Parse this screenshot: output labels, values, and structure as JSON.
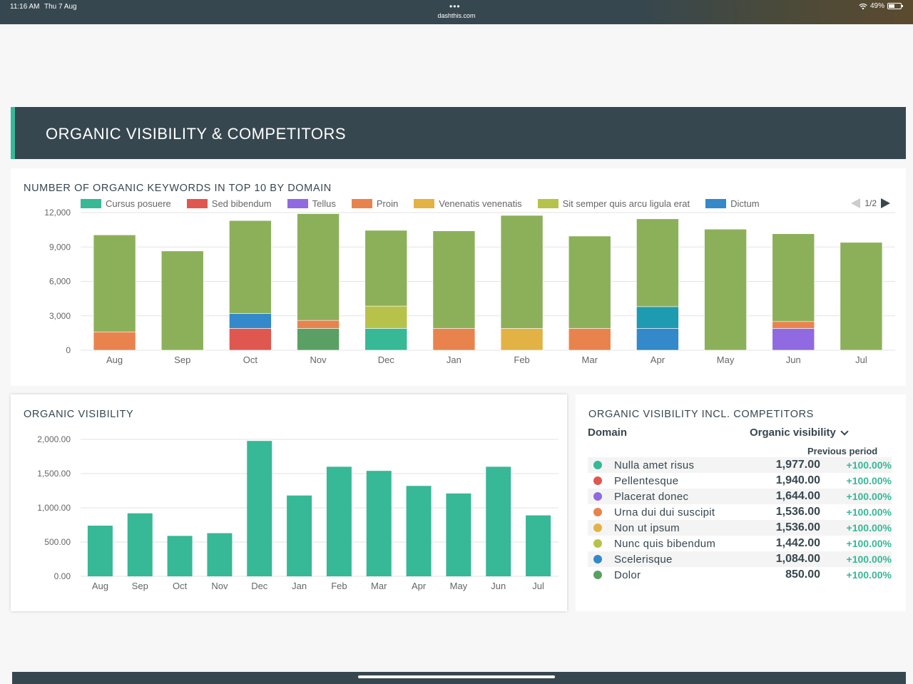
{
  "statusbar": {
    "time": "11:16 AM",
    "date": "Thu 7 Aug",
    "url": "dashthis.com",
    "battery": "49%"
  },
  "section": {
    "title": "ORGANIC VISIBILITY & COMPETITORS"
  },
  "colors": {
    "header_bg": "#37474f",
    "accent": "#37b896",
    "cursus": "#37b896",
    "sed": "#e0574f",
    "tellus": "#8f6ae0",
    "proin": "#e9834d",
    "venenatis": "#e3b245",
    "sit": "#b7c24a",
    "dictum": "#3389c9",
    "nulla": "#8cb05a",
    "dolor": "#5aa064",
    "grid": "#e3e3e3"
  },
  "keywords_panel": {
    "pager": "1/2",
    "chart_data": {
      "type": "bar",
      "stacked": true,
      "title": "NUMBER OF ORGANIC KEYWORDS IN TOP 10 BY DOMAIN",
      "categories": [
        "Aug",
        "Sep",
        "Oct",
        "Nov",
        "Dec",
        "Jan",
        "Feb",
        "Mar",
        "Apr",
        "May",
        "Jun",
        "Jul"
      ],
      "ylim": [
        0,
        12000
      ],
      "yticks": [
        "0",
        "3,000",
        "6,000",
        "9,000",
        "12,000"
      ],
      "ytick_values": [
        0,
        3000,
        6000,
        9000,
        12000
      ],
      "grid": true,
      "legend_position": "top",
      "legend": [
        {
          "name": "Cursus posuere",
          "color": "#37b896"
        },
        {
          "name": "Sed bibendum",
          "color": "#e0574f"
        },
        {
          "name": "Tellus",
          "color": "#8f6ae0"
        },
        {
          "name": "Proin",
          "color": "#e9834d"
        },
        {
          "name": "Venenatis venenatis",
          "color": "#e3b245"
        },
        {
          "name": "Sit semper quis arcu ligula erat",
          "color": "#b7c24a"
        },
        {
          "name": "Dictum",
          "color": "#3389c9"
        }
      ],
      "series": [
        {
          "color": "#5aa064",
          "values": [
            0,
            0,
            0,
            1900,
            0,
            0,
            0,
            0,
            0,
            0,
            0,
            0
          ]
        },
        {
          "color": "#37b896",
          "values": [
            0,
            0,
            0,
            0,
            1900,
            0,
            0,
            0,
            0,
            0,
            0,
            0
          ]
        },
        {
          "color": "#e0574f",
          "values": [
            0,
            0,
            1900,
            0,
            0,
            0,
            0,
            0,
            0,
            0,
            0,
            0
          ]
        },
        {
          "color": "#8f6ae0",
          "values": [
            0,
            0,
            0,
            0,
            0,
            0,
            0,
            0,
            0,
            0,
            1900,
            0
          ]
        },
        {
          "color": "#e9834d",
          "values": [
            1600,
            0,
            0,
            700,
            0,
            1900,
            0,
            1900,
            0,
            0,
            600,
            0
          ]
        },
        {
          "color": "#e3b245",
          "values": [
            0,
            0,
            0,
            0,
            0,
            0,
            1900,
            0,
            0,
            0,
            0,
            0
          ]
        },
        {
          "color": "#3389c9",
          "values": [
            0,
            0,
            1300,
            0,
            0,
            0,
            0,
            0,
            1900,
            0,
            0,
            0
          ]
        },
        {
          "color": "#1e9bb0",
          "values": [
            0,
            0,
            0,
            0,
            0,
            0,
            0,
            0,
            1900,
            0,
            0,
            0
          ]
        },
        {
          "color": "#b7c24a",
          "values": [
            0,
            0,
            0,
            0,
            1950,
            0,
            0,
            0,
            0,
            0,
            0,
            0
          ]
        },
        {
          "color": "#8cb05a",
          "values": [
            8450,
            8650,
            8100,
            9300,
            6600,
            8500,
            9850,
            8050,
            7650,
            10550,
            7650,
            9400
          ]
        }
      ]
    }
  },
  "visibility_panel": {
    "chart_data": {
      "type": "bar",
      "title": "ORGANIC VISIBILITY",
      "categories": [
        "Aug",
        "Sep",
        "Oct",
        "Nov",
        "Dec",
        "Jan",
        "Feb",
        "Mar",
        "Apr",
        "May",
        "Jun",
        "Jul"
      ],
      "values": [
        740,
        920,
        590,
        630,
        1977,
        1180,
        1600,
        1540,
        1320,
        1210,
        1600,
        890
      ],
      "ylim": [
        0,
        2000
      ],
      "yticks": [
        "0.00",
        "500.00",
        "1,000.00",
        "1,500.00",
        "2,000.00"
      ],
      "ytick_values": [
        0,
        500,
        1000,
        1500,
        2000
      ],
      "color": "#37b896",
      "grid": true
    }
  },
  "competitors_panel": {
    "title": "ORGANIC VISIBILITY INCL. COMPETITORS",
    "col_domain": "Domain",
    "col_visibility": "Organic visibility",
    "col_previous": "Previous period",
    "rows": [
      {
        "name": "Nulla amet risus",
        "value": "1,977.00",
        "change": "+100.00%",
        "color": "#37b896"
      },
      {
        "name": "Pellentesque",
        "value": "1,940.00",
        "change": "+100.00%",
        "color": "#e0574f"
      },
      {
        "name": "Placerat donec",
        "value": "1,644.00",
        "change": "+100.00%",
        "color": "#8f6ae0"
      },
      {
        "name": "Urna dui dui suscipit",
        "value": "1,536.00",
        "change": "+100.00%",
        "color": "#e9834d"
      },
      {
        "name": "Non ut ipsum",
        "value": "1,536.00",
        "change": "+100.00%",
        "color": "#e3b245"
      },
      {
        "name": "Nunc quis bibendum",
        "value": "1,442.00",
        "change": "+100.00%",
        "color": "#b7c24a"
      },
      {
        "name": "Scelerisque",
        "value": "1,084.00",
        "change": "+100.00%",
        "color": "#3389c9"
      },
      {
        "name": "Dolor",
        "value": "850.00",
        "change": "+100.00%",
        "color": "#5aa064"
      }
    ]
  }
}
